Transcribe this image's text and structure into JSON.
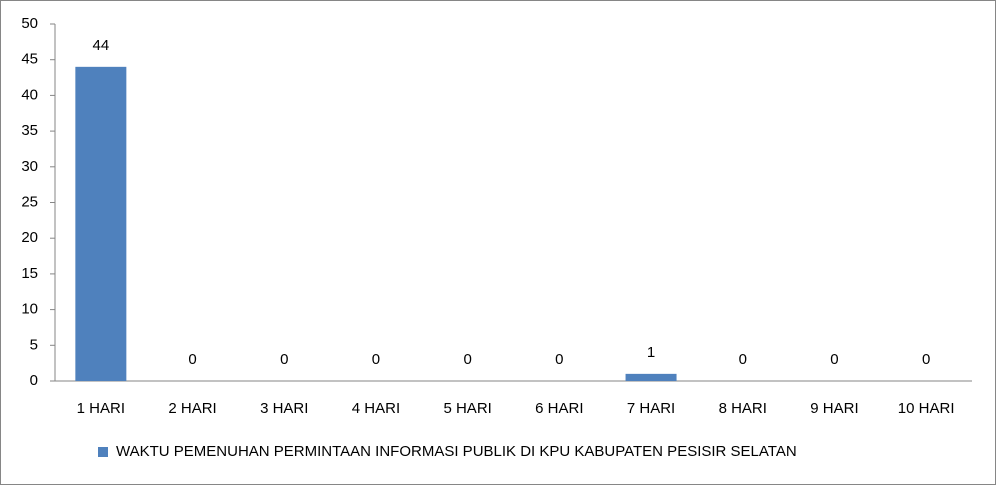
{
  "chart_data": {
    "type": "bar",
    "categories": [
      "1 HARI",
      "2 HARI",
      "3 HARI",
      "4 HARI",
      "5 HARI",
      "6 HARI",
      "7 HARI",
      "8 HARI",
      "9 HARI",
      "10 HARI"
    ],
    "series": [
      {
        "name": "WAKTU PEMENUHAN PERMINTAAN INFORMASI PUBLIK DI KPU KABUPATEN PESISIR SELATAN",
        "color": "#4f81bd",
        "values": [
          44,
          0,
          0,
          0,
          0,
          0,
          1,
          0,
          0,
          0
        ]
      }
    ],
    "ylim": [
      0,
      50
    ],
    "yticks": [
      0,
      5,
      10,
      15,
      20,
      25,
      30,
      35,
      40,
      45,
      50
    ],
    "grid": false,
    "legend": "bottom"
  }
}
